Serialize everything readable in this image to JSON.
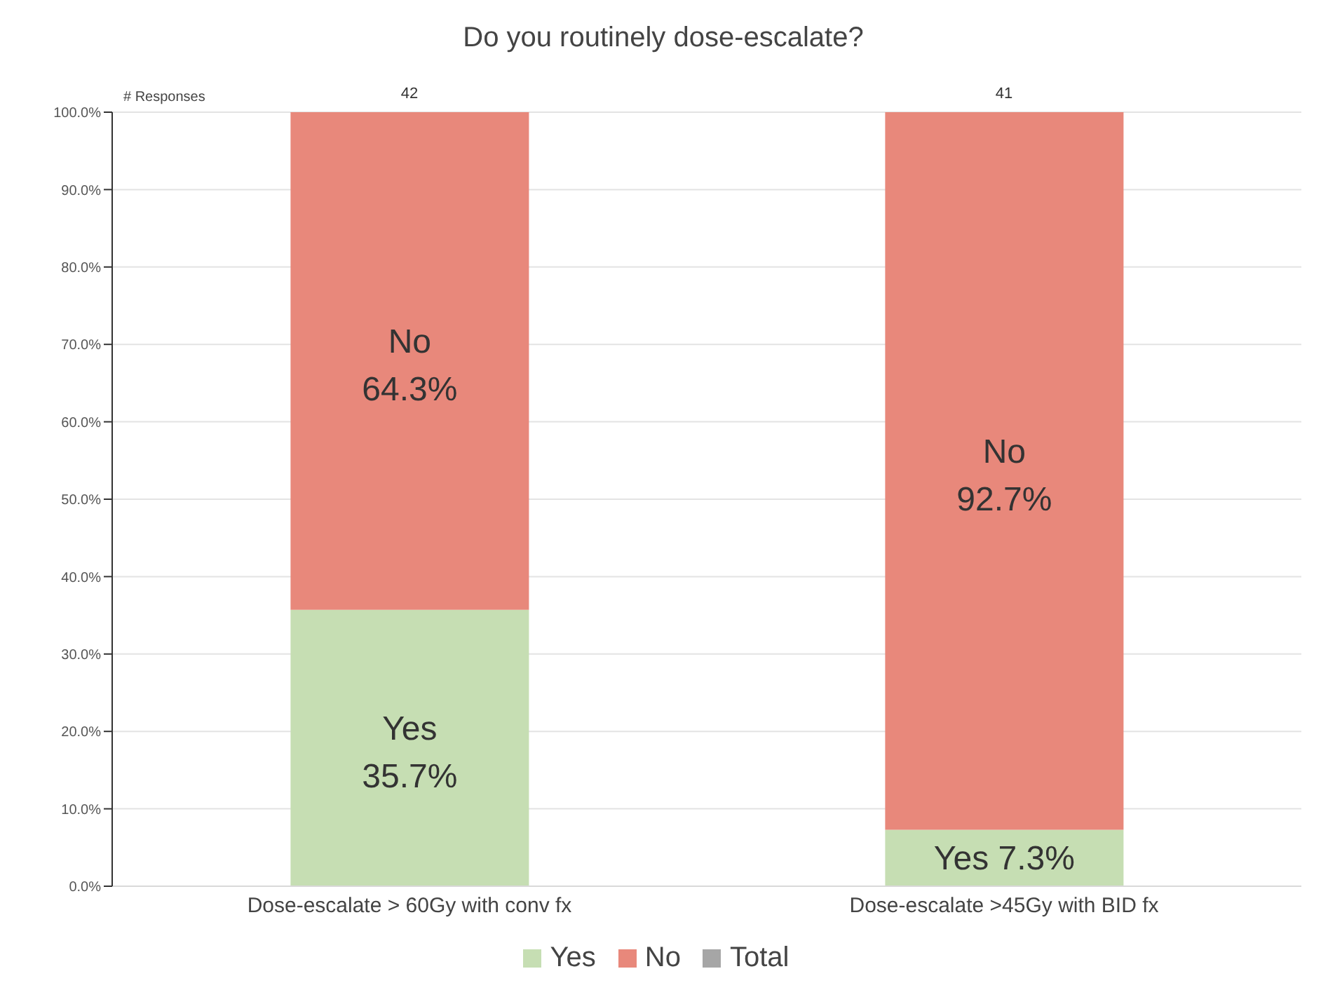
{
  "chart_data": {
    "type": "bar",
    "title": "Do you routinely dose-escalate?",
    "stacked": true,
    "categories": [
      "Dose-escalate > 60Gy with conv fx",
      "Dose-escalate >45Gy with BID fx"
    ],
    "series": [
      {
        "name": "Yes",
        "color": "#c6deb3",
        "values": [
          35.7,
          7.3
        ],
        "value_labels": [
          "Yes 35.7%",
          "Yes 7.3%"
        ]
      },
      {
        "name": "No",
        "color": "#e8887b",
        "values": [
          64.3,
          92.7
        ],
        "value_labels": [
          "No 64.3%",
          "No 92.7%"
        ]
      },
      {
        "name": "Total",
        "color": "#a6a6a6",
        "values": [
          null,
          null
        ]
      }
    ],
    "annotations": [
      "# Responses",
      {
        "text": "42",
        "x": "Dose-escalate > 60Gy with conv fx",
        "y": 100
      },
      {
        "text": "41",
        "x": "Dose-escalate >45Gy with BID fx",
        "y": 100
      }
    ],
    "ylim": [
      0,
      100
    ],
    "yticks": [
      {
        "value": 0,
        "label": "0.0%"
      },
      {
        "value": 10,
        "label": "10.0%"
      },
      {
        "value": 20,
        "label": "20.0%"
      },
      {
        "value": 30,
        "label": "30.0%"
      },
      {
        "value": 40,
        "label": "40.0%"
      },
      {
        "value": 50,
        "label": "50.0%"
      },
      {
        "value": 60,
        "label": "60.0%"
      },
      {
        "value": 70,
        "label": "70.0%"
      },
      {
        "value": 80,
        "label": "80.0%"
      },
      {
        "value": 90,
        "label": "90.0%"
      },
      {
        "value": 100,
        "label": "100.0%"
      }
    ],
    "grid": "y",
    "legend": "bottom"
  }
}
